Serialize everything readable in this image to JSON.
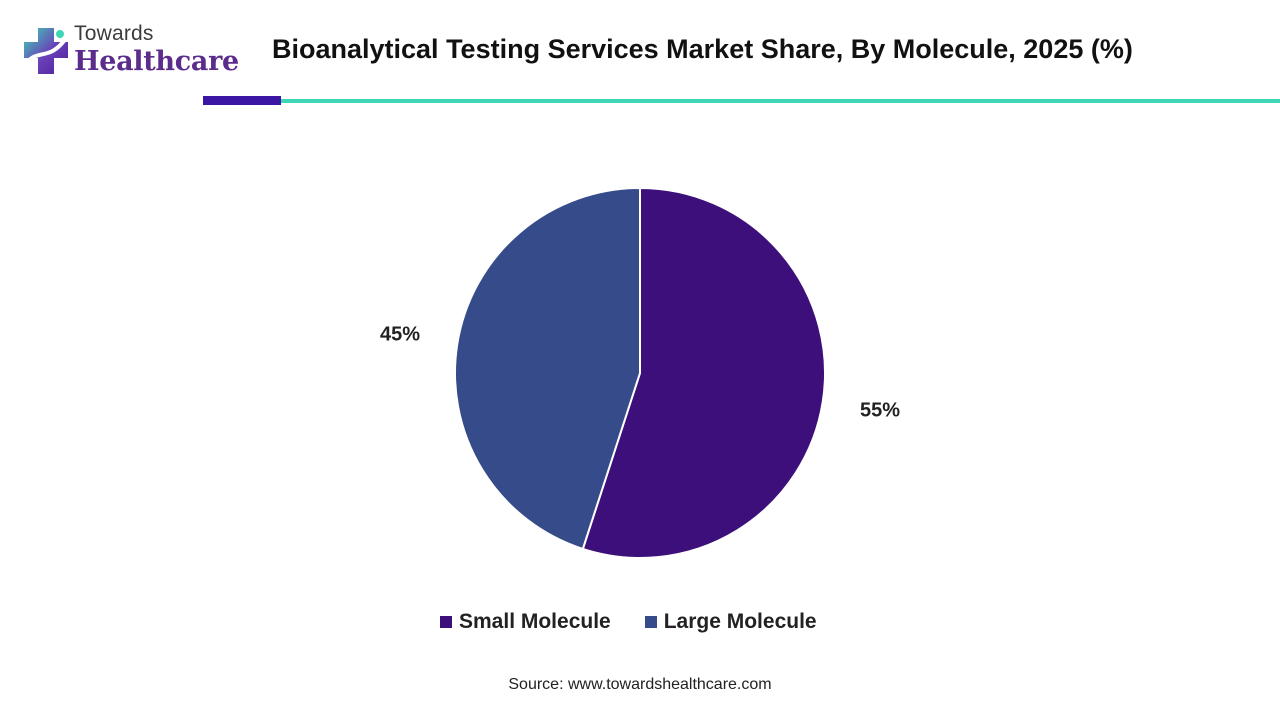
{
  "header": {
    "logo_top": "Towards",
    "logo_bottom": "Healthcare",
    "title": "Bioanalytical Testing Services Market Share, By Molecule, 2025 (%)"
  },
  "colors": {
    "small_molecule": "#3d0f7a",
    "large_molecule": "#364b8a",
    "accent_dark": "#3b15a3",
    "accent_teal": "#3ed6b5"
  },
  "chart_data": {
    "type": "pie",
    "title": "Bioanalytical Testing Services Market Share, By Molecule, 2025 (%)",
    "categories": [
      "Small Molecule",
      "Large Molecule"
    ],
    "values": [
      55,
      45
    ],
    "data_labels": [
      "55%",
      "45%"
    ],
    "colors": [
      "#3d0f7a",
      "#364b8a"
    ],
    "legend_position": "bottom",
    "start_angle": "top, clockwise"
  },
  "legend": {
    "items": [
      {
        "label": "Small Molecule",
        "color": "#3d0f7a"
      },
      {
        "label": "Large Molecule",
        "color": "#364b8a"
      }
    ]
  },
  "footer": {
    "source": "Source: www.towardshealthcare.com"
  }
}
